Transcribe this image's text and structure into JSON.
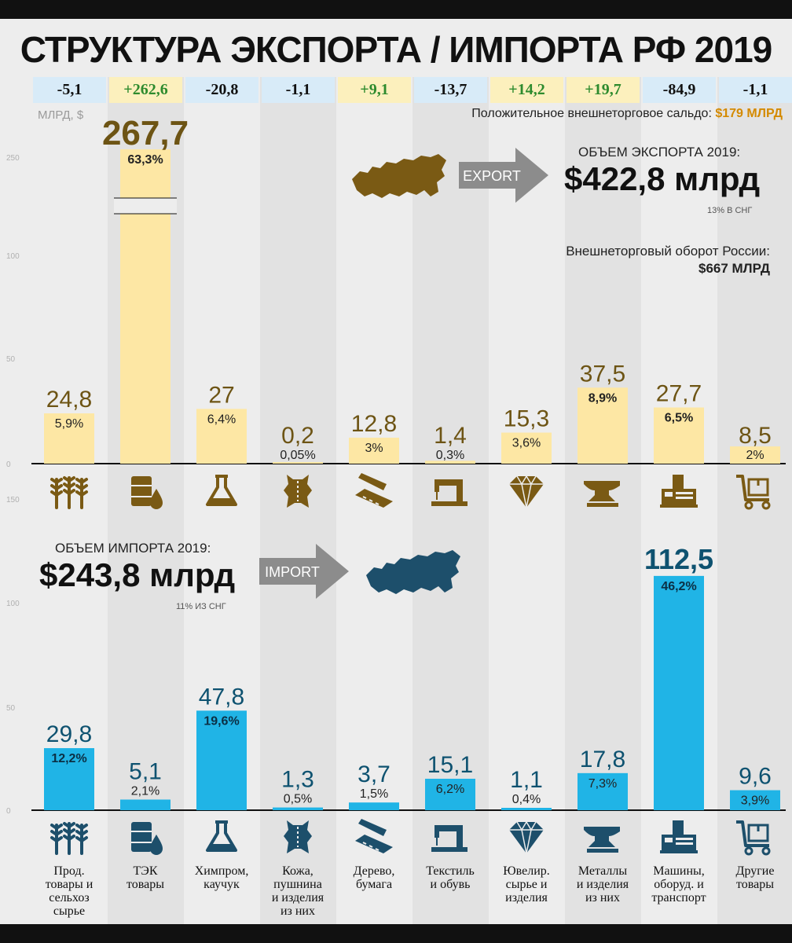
{
  "title": "СТРУКТУРА ЭКСПОРТА / ИМПОРТА РФ 2019",
  "units_label": "МЛРД, $",
  "saldo": {
    "prefix": "Положительное внешнеторговое сальдо:",
    "value": "$179 МЛРД"
  },
  "export_summary": {
    "label": "ОБЪЕМ ЭКСПОРТА 2019:",
    "value": "$422,8 млрд",
    "sub": "13% В СНГ",
    "arrow": "EXPORT"
  },
  "turnover": {
    "label": "Внешнеторговый оборот России:",
    "value": "$667 МЛРД"
  },
  "import_summary": {
    "label": "ОБЪЕМ ИМПОРТА 2019:",
    "value": "$243,8 млрд",
    "sub": "11% ИЗ СНГ",
    "arrow": "IMPORT"
  },
  "colors": {
    "export_bar": "#fde7a4",
    "export_text": "#6d5414",
    "import_bar": "#20b4e6",
    "import_text": "#0e5270",
    "export_icon": "#7a5a14",
    "import_icon": "#1d4f6b",
    "positive": "#2e8b2e",
    "map_export": "#7a5a14",
    "map_import": "#1d4f6b",
    "arrow": "#8c8c8c"
  },
  "chart_data": [
    {
      "type": "bar",
      "name": "export",
      "categories": [
        "Прод. товары и сельхоз сырье",
        "ТЭК товары",
        "Химпром, каучук",
        "Кожа, пушнина и изделия из них",
        "Дерево, бумага",
        "Текстиль и обувь",
        "Ювелир. сырье и изделия",
        "Металлы и изделия из них",
        "Машины, оборуд. и транспорт",
        "Другие товары"
      ],
      "values": [
        24.8,
        267.7,
        27,
        0.2,
        12.8,
        1.4,
        15.3,
        37.5,
        27.7,
        8.5
      ],
      "value_labels": [
        "24,8",
        "267,7",
        "27",
        "0,2",
        "12,8",
        "1,4",
        "15,3",
        "37,5",
        "27,7",
        "8,5"
      ],
      "share_labels": [
        "5,9%",
        "63,3%",
        "6,4%",
        "0,05%",
        "3%",
        "0,3%",
        "3,6%",
        "8,9%",
        "6,5%",
        "2%"
      ],
      "balance": [
        "-5,1",
        "+262,6",
        "-20,8",
        "-1,1",
        "+9,1",
        "-13,7",
        "+14,2",
        "+19,7",
        "-84,9",
        "-1,1"
      ],
      "axis_ticks": [
        "250",
        "100",
        "50",
        "0"
      ],
      "axis_break": true,
      "ylabel": "МЛРД, $"
    },
    {
      "type": "bar",
      "name": "import",
      "categories": [
        "Прод. товары и сельхоз сырье",
        "ТЭК товары",
        "Химпром, каучук",
        "Кожа, пушнина и изделия из них",
        "Дерево, бумага",
        "Текстиль и обувь",
        "Ювелир. сырье и изделия",
        "Металлы и изделия из них",
        "Машины, оборуд. и транспорт",
        "Другие товары"
      ],
      "values": [
        29.8,
        5.1,
        47.8,
        1.3,
        3.7,
        15.1,
        1.1,
        17.8,
        112.5,
        9.6
      ],
      "value_labels": [
        "29,8",
        "5,1",
        "47,8",
        "1,3",
        "3,7",
        "15,1",
        "1,1",
        "17,8",
        "112,5",
        "9,6"
      ],
      "share_labels": [
        "12,2%",
        "2,1%",
        "19,6%",
        "0,5%",
        "1,5%",
        "6,2%",
        "0,4%",
        "7,3%",
        "46,2%",
        "3,9%"
      ],
      "axis_ticks": [
        "150",
        "100",
        "50",
        "0"
      ]
    }
  ],
  "category_labels": [
    [
      "Прод.",
      "товары и",
      "сельхоз",
      "сырье"
    ],
    [
      "ТЭК",
      "товары"
    ],
    [
      "Химпром,",
      "каучук"
    ],
    [
      "Кожа,",
      "пушнина",
      "и изделия",
      "из них"
    ],
    [
      "Дерево,",
      "бумага"
    ],
    [
      "Текстиль",
      "и обувь"
    ],
    [
      "Ювелир.",
      "сырье и",
      "изделия"
    ],
    [
      "Металлы",
      "и изделия",
      "из них"
    ],
    [
      "Машины,",
      "оборуд. и",
      "транспорт"
    ],
    [
      "Другие",
      "товары"
    ]
  ],
  "icons": [
    "wheat-icon",
    "oil-barrel-icon",
    "flask-icon",
    "leather-hide-icon",
    "wood-saw-icon",
    "sewing-machine-icon",
    "diamond-icon",
    "anvil-icon",
    "machine-tool-icon",
    "cart-icon"
  ]
}
